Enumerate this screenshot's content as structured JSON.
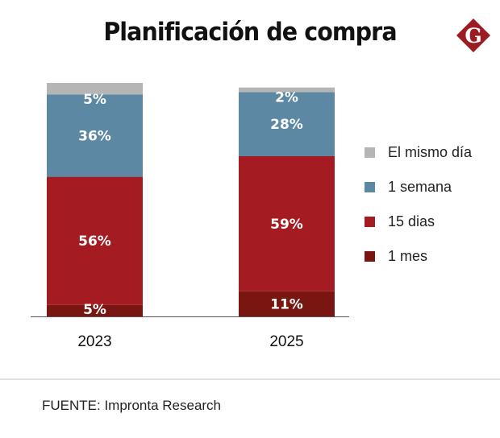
{
  "header": {
    "title": "Planificación de compra",
    "logo_letter": "G",
    "logo_color": "#9b1c23"
  },
  "chart_data": {
    "type": "bar",
    "stacked": true,
    "title": "Planificación de compra",
    "xlabel": "",
    "ylabel": "",
    "categories": [
      "2023",
      "2025"
    ],
    "series": [
      {
        "name": "1 mes",
        "color": "#7a1611",
        "values": [
          5,
          11
        ],
        "labels": [
          "5%",
          "11%"
        ]
      },
      {
        "name": "15 dias",
        "color": "#a41b21",
        "values": [
          56,
          59
        ],
        "labels": [
          "56%",
          "59%"
        ]
      },
      {
        "name": "1 semana",
        "color": "#5d88a3",
        "values": [
          36,
          28
        ],
        "labels": [
          "36%",
          "28%"
        ]
      },
      {
        "name": "El mismo día",
        "color": "#b5b5b5",
        "values": [
          5,
          2
        ],
        "labels": [
          "5%",
          "2%"
        ]
      }
    ],
    "legend_order": [
      "El mismo día",
      "1 semana",
      "15 dias",
      "1 mes"
    ],
    "legend_position": "right",
    "grid": false,
    "ylim": [
      0,
      102
    ]
  },
  "footer": {
    "source": "FUENTE: Impronta Research"
  }
}
